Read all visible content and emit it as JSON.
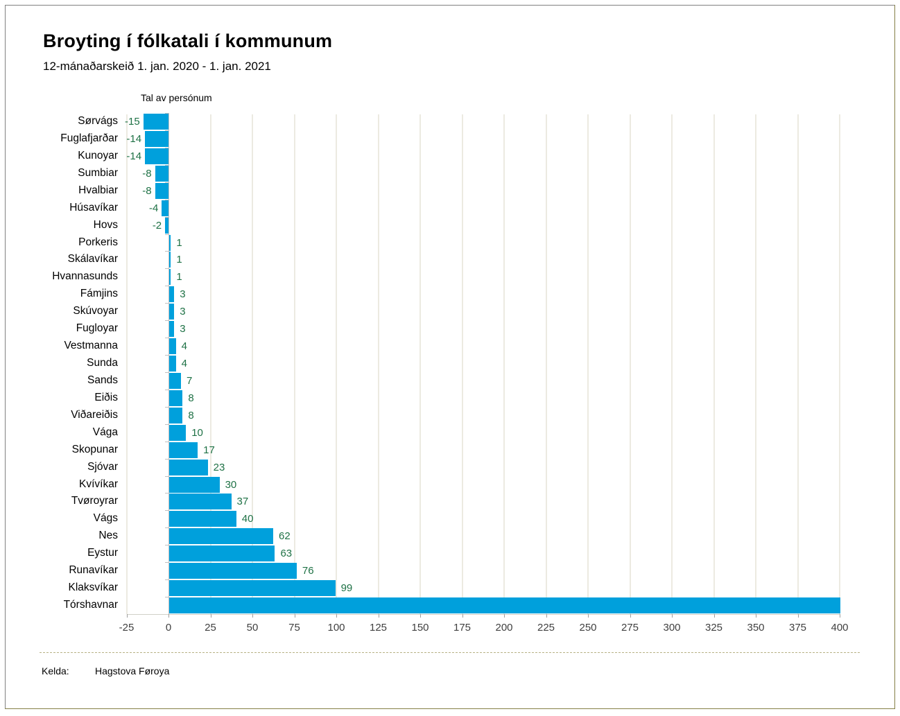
{
  "header": {
    "title": "Broyting í fólkatali í kommunum",
    "subtitle": "12-mánaðarskeið 1. jan. 2020 - 1. jan. 2021"
  },
  "chart_data": {
    "type": "bar",
    "orientation": "horizontal",
    "axis_title": "Tal av persónum",
    "categories": [
      "Sørvágs",
      "Fuglafjarðar",
      "Kunoyar",
      "Sumbiar",
      "Hvalbiar",
      "Húsavíkar",
      "Hovs",
      "Porkeris",
      "Skálavíkar",
      "Hvannasunds",
      "Fámjins",
      "Skúvoyar",
      "Fugloyar",
      "Vestmanna",
      "Sunda",
      "Sands",
      "Eiðis",
      "Viðareiðis",
      "Vága",
      "Skopunar",
      "Sjóvar",
      "Kvívíkar",
      "Tvøroyrar",
      "Vágs",
      "Nes",
      "Eystur",
      "Runavíkar",
      "Klaksvíkar",
      "Tórshavnar"
    ],
    "values": [
      -15,
      -14,
      -14,
      -8,
      -8,
      -4,
      -2,
      1,
      1,
      1,
      3,
      3,
      3,
      4,
      4,
      7,
      8,
      8,
      10,
      17,
      23,
      30,
      37,
      40,
      62,
      63,
      76,
      99,
      400
    ],
    "value_labels": [
      "-15",
      "-14",
      "-14",
      "-8",
      "-8",
      "-4",
      "-2",
      "1",
      "1",
      "1",
      "3",
      "3",
      "3",
      "4",
      "4",
      "7",
      "8",
      "8",
      "10",
      "17",
      "23",
      "30",
      "37",
      "40",
      "62",
      "63",
      "76",
      "99",
      ""
    ],
    "x_ticks": [
      -25,
      0,
      25,
      50,
      75,
      100,
      125,
      150,
      175,
      200,
      225,
      250,
      275,
      300,
      325,
      350,
      375,
      400
    ],
    "xlim": [
      -25,
      400
    ],
    "grid": true,
    "legend": "none",
    "bar_color": "#00A0DC",
    "value_label_color": "#1E7145"
  },
  "footer": {
    "source_label": "Kelda:",
    "source_value": "Hagstova Føroya"
  }
}
